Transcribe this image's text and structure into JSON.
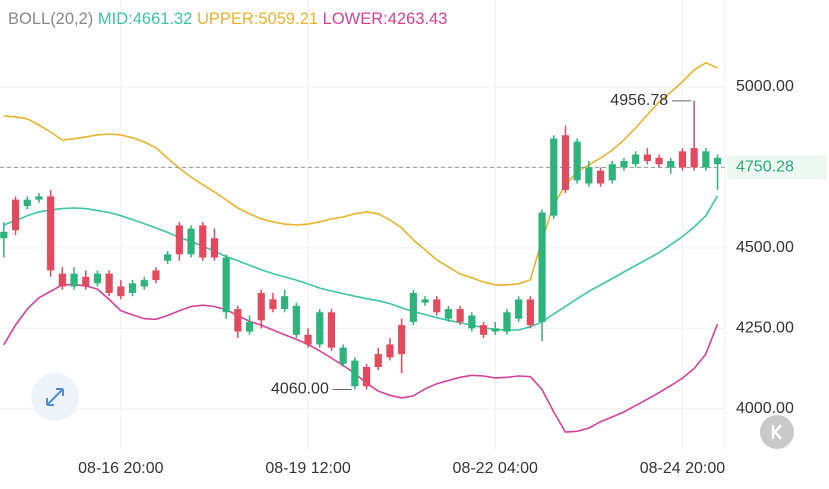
{
  "chart_data": {
    "type": "candlestick",
    "title": "BOLL(20,2)",
    "categories": [
      null,
      null,
      null,
      null,
      null,
      null,
      null,
      null,
      null,
      null,
      "08-16 20:00",
      null,
      null,
      null,
      null,
      null,
      null,
      null,
      null,
      null,
      null,
      null,
      null,
      null,
      null,
      null,
      "08-19 12:00",
      null,
      null,
      null,
      null,
      null,
      null,
      null,
      null,
      null,
      null,
      null,
      null,
      null,
      null,
      null,
      "08-22 04:00",
      null,
      null,
      null,
      null,
      null,
      null,
      null,
      null,
      null,
      null,
      null,
      null,
      null,
      null,
      null,
      "08-24 20:00",
      null,
      null,
      null
    ],
    "open": [
      4530,
      4650,
      4630,
      4650,
      4660,
      4420,
      4380,
      4410,
      4390,
      4420,
      4380,
      4360,
      4380,
      4430,
      4460,
      4570,
      4480,
      4570,
      4530,
      4300,
      4310,
      4240,
      4360,
      4340,
      4310,
      4230,
      4230,
      4200,
      4300,
      4140,
      4070,
      4130,
      4170,
      4200,
      4260,
      4270,
      4330,
      4340,
      4280,
      4310,
      4250,
      4260,
      4240,
      4240,
      4280,
      4340,
      4270,
      4600,
      4850,
      4710,
      4700,
      4740,
      4710,
      4750,
      4760,
      4790,
      4780,
      4750,
      4800,
      4810,
      4750,
      4760
    ],
    "high": [
      4580,
      4660,
      4660,
      4670,
      4680,
      4440,
      4440,
      4430,
      4430,
      4430,
      4400,
      4400,
      4410,
      4440,
      4490,
      4580,
      4570,
      4580,
      4560,
      4480,
      4320,
      4290,
      4370,
      4360,
      4370,
      4330,
      4250,
      4310,
      4310,
      4200,
      4160,
      4140,
      4190,
      4220,
      4280,
      4370,
      4350,
      4350,
      4320,
      4320,
      4300,
      4270,
      4270,
      4310,
      4350,
      4350,
      4620,
      4850,
      4880,
      4840,
      4770,
      4750,
      4770,
      4780,
      4800,
      4810,
      4790,
      4780,
      4810,
      4956.78,
      4810,
      4790
    ],
    "low": [
      4470,
      4540,
      4620,
      4640,
      4410,
      4370,
      4370,
      4370,
      4380,
      4350,
      4340,
      4350,
      4370,
      4390,
      4450,
      4460,
      4470,
      4460,
      4460,
      4280,
      4220,
      4230,
      4250,
      4300,
      4300,
      4220,
      4190,
      4190,
      4180,
      4130,
      4060,
      4060,
      4120,
      4150,
      4110,
      4260,
      4320,
      4290,
      4270,
      4260,
      4240,
      4220,
      4230,
      4230,
      4270,
      4250,
      4210,
      4590,
      4670,
      4700,
      4690,
      4690,
      4700,
      4740,
      4750,
      4760,
      4750,
      4730,
      4740,
      4740,
      4740,
      4680
    ],
    "close": [
      4550,
      4555,
      4650,
      4660,
      4430,
      4380,
      4420,
      4380,
      4420,
      4360,
      4350,
      4390,
      4400,
      4400,
      4480,
      4480,
      4560,
      4470,
      4470,
      4470,
      4240,
      4270,
      4275,
      4310,
      4350,
      4320,
      4200,
      4300,
      4190,
      4190,
      4150,
      4070,
      4130,
      4160,
      4170,
      4360,
      4340,
      4300,
      4310,
      4270,
      4290,
      4230,
      4250,
      4300,
      4340,
      4260,
      4610,
      4840,
      4680,
      4830,
      4750,
      4700,
      4760,
      4770,
      4790,
      4770,
      4760,
      4770,
      4750,
      4750,
      4800,
      4780
    ],
    "up_color": "#2db47c",
    "down_color": "#e24a5e",
    "series": [
      {
        "name": "MID:4661.32",
        "color": "#3cc4a8",
        "values": [
          4571,
          4585,
          4600,
          4612,
          4618,
          4622,
          4624,
          4622,
          4616,
          4610,
          4600,
          4588,
          4575,
          4562,
          4548,
          4533,
          4520,
          4505,
          4490,
          4473,
          4460,
          4446,
          4432,
          4420,
          4410,
          4400,
          4388,
          4375,
          4366,
          4358,
          4350,
          4342,
          4336,
          4327,
          4314,
          4302,
          4293,
          4283,
          4275,
          4268,
          4260,
          4252,
          4246,
          4245,
          4245,
          4255,
          4270,
          4295,
          4318,
          4342,
          4365,
          4385,
          4405,
          4425,
          4445,
          4465,
          4485,
          4510,
          4535,
          4565,
          4600,
          4661.32
        ]
      },
      {
        "name": "UPPER:5059.21",
        "color": "#e8b22a",
        "values": [
          4910,
          4907,
          4901,
          4882,
          4860,
          4835,
          4839,
          4845,
          4851,
          4854,
          4851,
          4842,
          4829,
          4811,
          4779,
          4748,
          4720,
          4696,
          4674,
          4649,
          4624,
          4606,
          4590,
          4581,
          4574,
          4571,
          4574,
          4581,
          4590,
          4596,
          4606,
          4612,
          4606,
          4587,
          4562,
          4525,
          4494,
          4463,
          4441,
          4419,
          4407,
          4394,
          4385,
          4385,
          4388,
          4401,
          4525,
          4633,
          4696,
          4736,
          4758,
          4779,
          4804,
          4835,
          4873,
          4913,
          4953,
          4984,
          5016,
          5053,
          5075,
          5059.21
        ]
      },
      {
        "name": "LOWER:4263.43",
        "color": "#d5409a",
        "values": [
          4199,
          4260,
          4310,
          4345,
          4365,
          4385,
          4386,
          4382,
          4372,
          4340,
          4305,
          4292,
          4280,
          4278,
          4290,
          4305,
          4318,
          4322,
          4318,
          4308,
          4290,
          4272,
          4260,
          4245,
          4230,
          4216,
          4200,
          4180,
          4158,
          4135,
          4110,
          4080,
          4055,
          4042,
          4034,
          4040,
          4062,
          4078,
          4088,
          4098,
          4104,
          4102,
          4096,
          4098,
          4102,
          4100,
          4060,
          3990,
          3928,
          3930,
          3940,
          3960,
          3975,
          3990,
          4010,
          4030,
          4050,
          4072,
          4095,
          4125,
          4170,
          4263.43
        ]
      }
    ],
    "last_price": 4750.28,
    "last_price_color": "#2aa876",
    "annotations": [
      {
        "text": "4956.78",
        "index": 59,
        "value": 4956.78
      },
      {
        "text": "4060.00",
        "index": 30,
        "value": 4060
      }
    ],
    "ylim": [
      3872,
      5146
    ],
    "yticks": [
      {
        "value": 4000,
        "label": "4000.00"
      },
      {
        "value": 4250,
        "label": "4250.00"
      },
      {
        "value": 4500,
        "label": "4500.00"
      },
      {
        "value": 4750,
        "label": "4750.00"
      },
      {
        "value": 5000,
        "label": "5000.00"
      }
    ],
    "grid": true
  }
}
